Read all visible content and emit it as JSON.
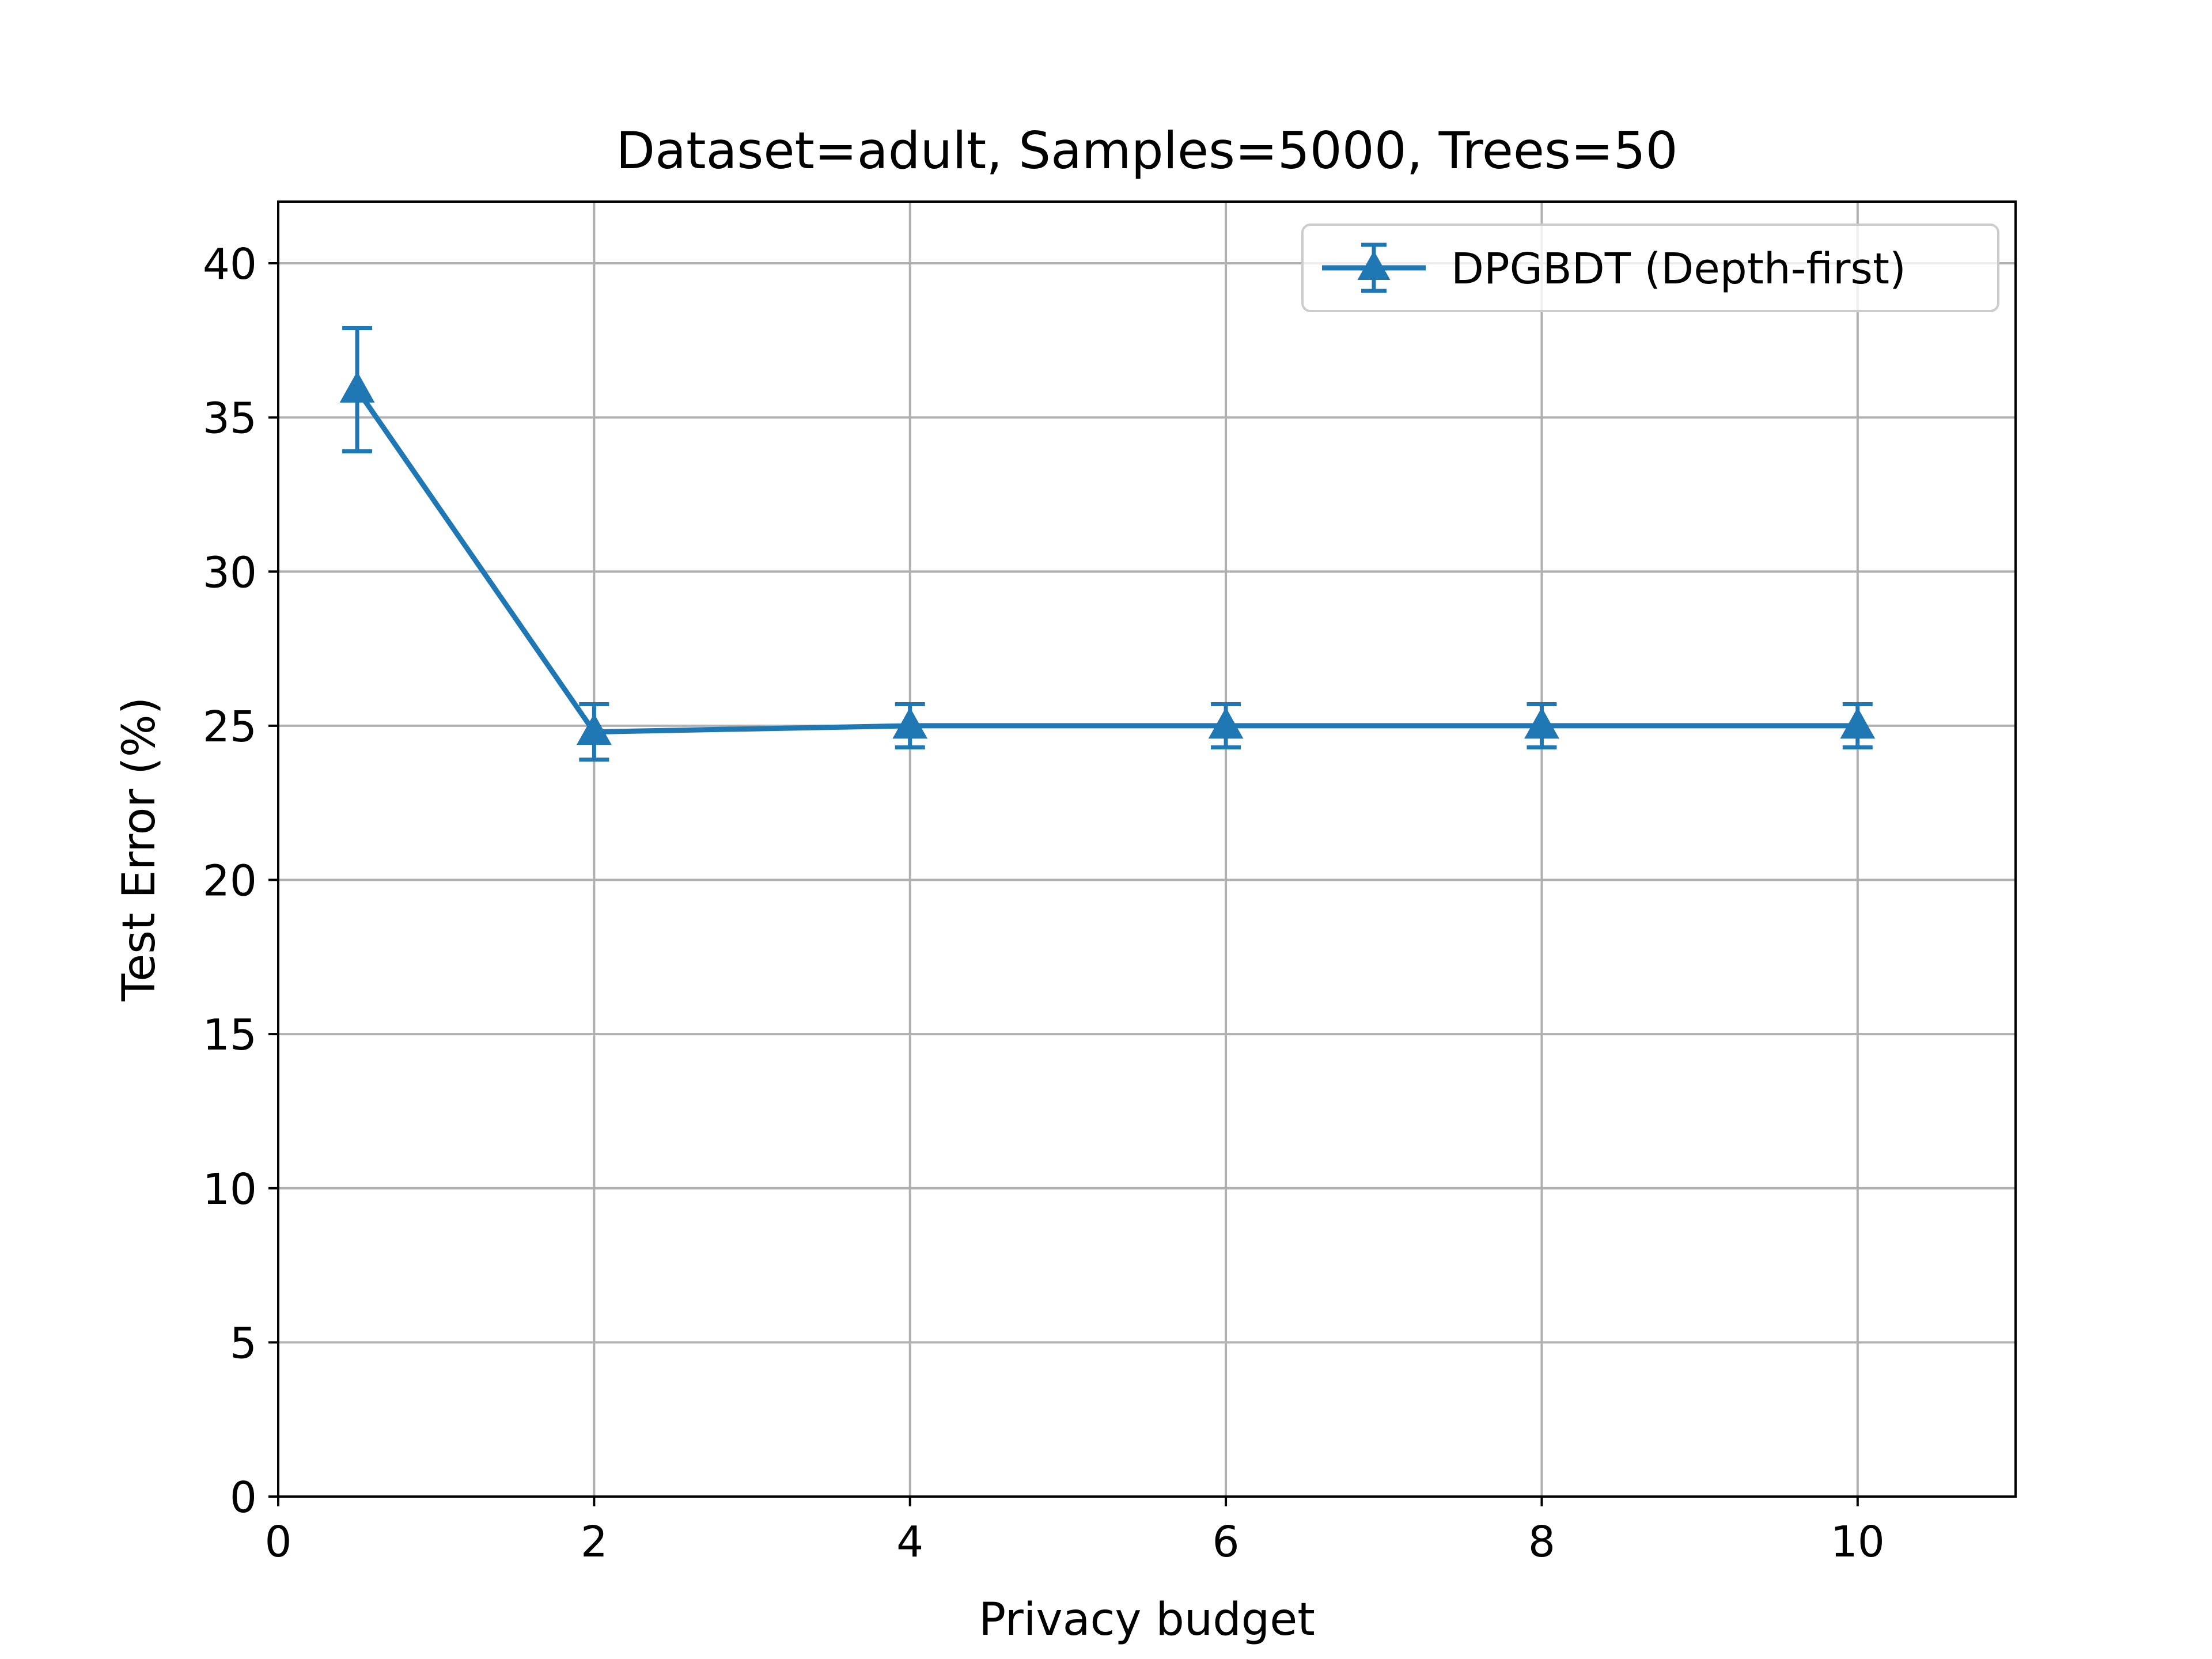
{
  "chart_data": {
    "type": "line",
    "title": "Dataset=adult, Samples=5000, Trees=50",
    "xlabel": "Privacy budget",
    "ylabel": "Test Error (%)",
    "xlim": [
      0,
      11
    ],
    "ylim": [
      0,
      42
    ],
    "xticks": [
      "0",
      "2",
      "4",
      "6",
      "8",
      "10"
    ],
    "yticks": [
      "0",
      "5",
      "10",
      "15",
      "20",
      "25",
      "30",
      "35",
      "40"
    ],
    "grid": true,
    "legend_position": "top-right",
    "series": [
      {
        "name": "DPGBDT (Depth-first)",
        "color": "#1f77b4",
        "marker": "triangle-up",
        "x": [
          0.5,
          2,
          4,
          6,
          8,
          10
        ],
        "y": [
          35.9,
          24.8,
          25.0,
          25.0,
          25.0,
          25.0
        ],
        "yerr": [
          2.0,
          0.9,
          0.7,
          0.7,
          0.7,
          0.7
        ]
      }
    ]
  }
}
